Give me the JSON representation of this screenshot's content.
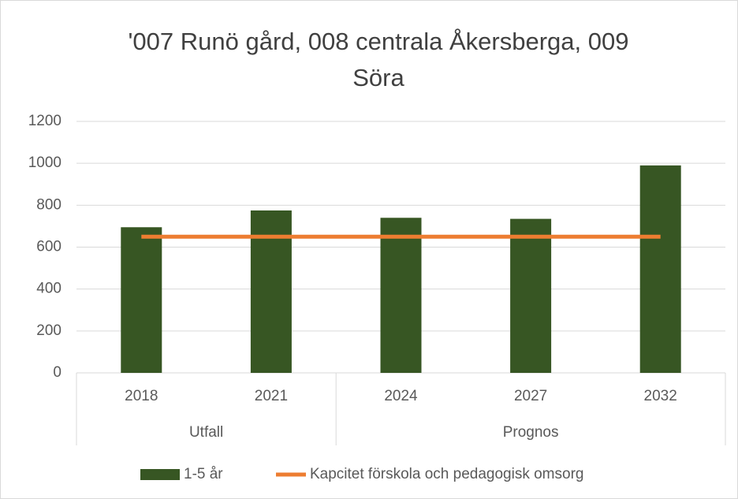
{
  "chart_data": {
    "type": "bar-line",
    "title": "'007 Runö gård, 008 centrala Åkersberga, 009 Söra",
    "categories": [
      "2018",
      "2021",
      "2024",
      "2027",
      "2032"
    ],
    "group_labels": [
      "Utfall",
      "Utfall",
      "Prognos",
      "Prognos",
      "Prognos"
    ],
    "series": [
      {
        "name": "1-5 år",
        "type": "bar",
        "color": "#375623",
        "values": [
          695,
          775,
          740,
          735,
          990
        ]
      },
      {
        "name": "Kapcitet förskola och pedagogisk omsorg",
        "type": "line",
        "color": "#ed7d31",
        "values": [
          650,
          650,
          650,
          650,
          650
        ]
      }
    ],
    "ylim": [
      0,
      1200
    ],
    "yticks": [
      0,
      200,
      400,
      600,
      800,
      1000,
      1200
    ],
    "grid": true,
    "legend": "bottom"
  }
}
